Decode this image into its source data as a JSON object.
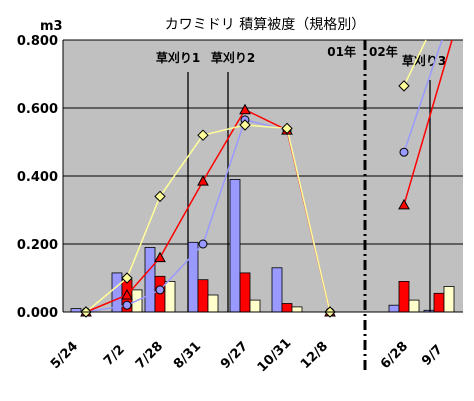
{
  "chart_data": {
    "type": "bar",
    "title": "カワミドリ  積算被度（規格別）",
    "ylabel": "m3",
    "ylim": [
      0,
      0.8
    ],
    "yticks": [
      "0.000",
      "0.200",
      "0.400",
      "0.600",
      "0.800"
    ],
    "categories": [
      "5/24",
      "7/2",
      "7/28",
      "8/31",
      "9/27",
      "10/31",
      "12/8",
      "6/28",
      "9/7"
    ],
    "series": [
      {
        "kind": "bar",
        "color": "#9999ff",
        "values": [
          0.01,
          0.115,
          0.19,
          0.205,
          0.39,
          0.13,
          0.0,
          0.02,
          0.005
        ]
      },
      {
        "kind": "bar",
        "color": "#ff0000",
        "values": [
          0.0,
          0.095,
          0.105,
          0.095,
          0.115,
          0.025,
          0.0,
          0.09,
          0.055
        ]
      },
      {
        "kind": "bar",
        "color": "#ffffcc",
        "values": [
          0.0,
          0.065,
          0.09,
          0.05,
          0.035,
          0.015,
          0.0,
          0.035,
          0.075
        ]
      },
      {
        "kind": "line",
        "color": "#9999ff",
        "marker": "circle",
        "values": [
          0.0,
          0.02,
          0.065,
          0.2,
          0.565,
          0.535,
          0.0,
          0.47,
          0.8
        ]
      },
      {
        "kind": "line",
        "color": "#ff0000",
        "marker": "triangle",
        "values": [
          0.0,
          0.05,
          0.16,
          0.385,
          0.595,
          0.535,
          0.0,
          0.315,
          0.8
        ]
      },
      {
        "kind": "line",
        "color": "#ffff99",
        "marker": "diamond",
        "values": [
          0.0,
          0.1,
          0.34,
          0.52,
          0.55,
          0.54,
          0.0,
          0.665,
          0.8
        ]
      }
    ],
    "annotations": [
      {
        "text": "草刈り1",
        "after": "8/31"
      },
      {
        "text": "草刈り2",
        "after": "9/27"
      },
      {
        "text": "草刈り3",
        "after": "6/28"
      }
    ],
    "year_divider": {
      "left_label": "01年",
      "right_label": "02年"
    }
  }
}
